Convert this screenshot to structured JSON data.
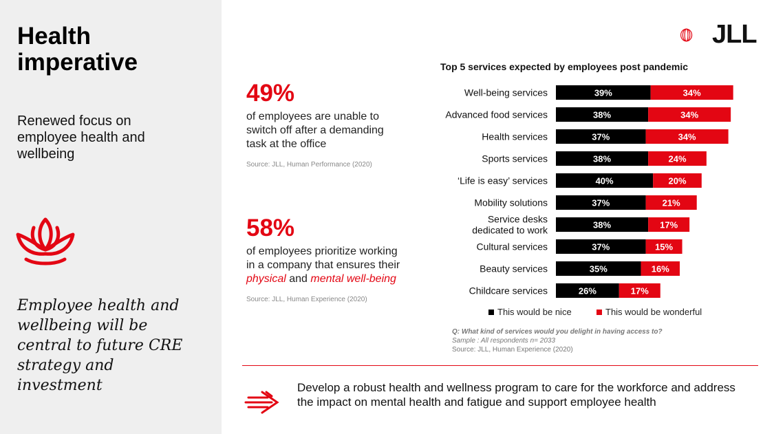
{
  "left": {
    "title": "Health\nimperative",
    "subtitle": "Renewed focus on\nemployee health and\nwellbeing",
    "quote": "Employee health and\nwellbeing will be\ncentral to future CRE\nstrategy and\ninvestment",
    "icon": "lotus-icon"
  },
  "stats": [
    {
      "pct": "49%",
      "text": "of employees are unable to switch off after a demanding task at the office",
      "source": "Source: JLL, Human Performance (2020)"
    },
    {
      "pct": "58%",
      "text_start": "of employees prioritize working in a company that ensures their ",
      "text_em1": "physical",
      "text_mid": " and ",
      "text_em2": "mental well-being",
      "source": "Source: JLL, Human Experience (2020)"
    }
  ],
  "logo": {
    "text": "JLL",
    "icon": "jll-logo-icon"
  },
  "chart_data": {
    "type": "bar",
    "orientation": "horizontal",
    "stacked": true,
    "title": "Top 5 services expected by employees post pandemic",
    "categories": [
      "Well-being services",
      "Advanced food services",
      "Health services",
      "Sports services",
      "‘Life is easy’ services",
      "Mobility solutions",
      "Service desks\ndedicated to work",
      "Cultural services",
      "Beauty services",
      "Childcare services"
    ],
    "series": [
      {
        "name": "This would be nice",
        "color": "#000000",
        "values": [
          39,
          38,
          37,
          38,
          40,
          37,
          38,
          37,
          35,
          26
        ]
      },
      {
        "name": "This would be wonderful",
        "color": "#e30613",
        "values": [
          34,
          34,
          34,
          24,
          20,
          21,
          17,
          15,
          16,
          17
        ]
      }
    ],
    "value_suffix": "%",
    "legend": "bottom"
  },
  "notes": {
    "question": "Q: What kind of services would you delight in having access to?",
    "sample": "Sample : All respondents n= 2033",
    "source": "Source: JLL, Human Experience (2020)"
  },
  "action": {
    "text": "Develop a robust health and wellness program to care for the workforce and address the impact on mental health and fatigue and support employee health",
    "icon": "arrow-right-icon"
  },
  "colors": {
    "accent": "#e30613",
    "panel": "#efefef"
  }
}
